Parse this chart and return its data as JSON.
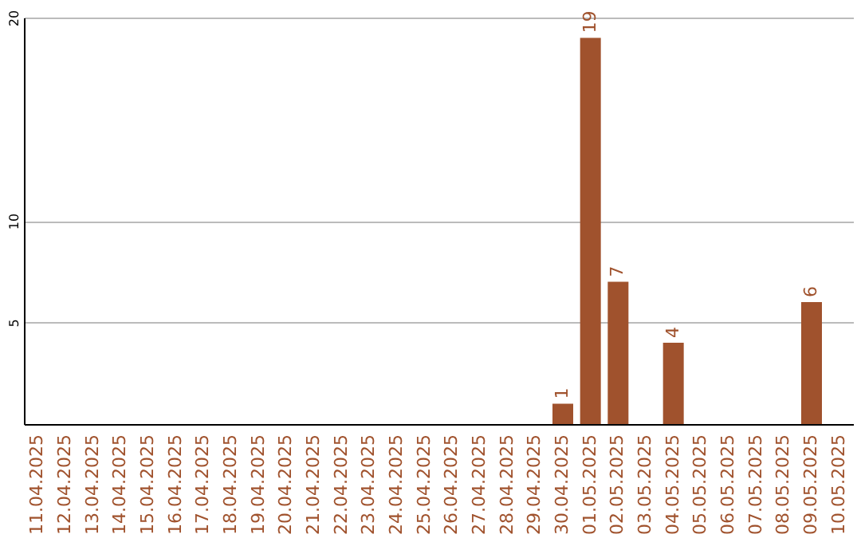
{
  "chart_data": {
    "type": "bar",
    "categories": [
      "11.04.2025",
      "12.04.2025",
      "13.04.2025",
      "14.04.2025",
      "15.04.2025",
      "16.04.2025",
      "17.04.2025",
      "18.04.2025",
      "19.04.2025",
      "20.04.2025",
      "21.04.2025",
      "22.04.2025",
      "23.04.2025",
      "24.04.2025",
      "25.04.2025",
      "26.04.2025",
      "27.04.2025",
      "28.04.2025",
      "29.04.2025",
      "30.04.2025",
      "01.05.2025",
      "02.05.2025",
      "03.05.2025",
      "04.05.2025",
      "05.05.2025",
      "06.05.2025",
      "07.05.2025",
      "08.05.2025",
      "09.05.2025",
      "10.05.2025"
    ],
    "values": [
      0,
      0,
      0,
      0,
      0,
      0,
      0,
      0,
      0,
      0,
      0,
      0,
      0,
      0,
      0,
      0,
      0,
      0,
      0,
      1,
      19,
      7,
      0,
      4,
      0,
      0,
      0,
      0,
      6,
      0
    ],
    "value_labels": [
      null,
      null,
      null,
      null,
      null,
      null,
      null,
      null,
      null,
      null,
      null,
      null,
      null,
      null,
      null,
      null,
      null,
      null,
      null,
      "1",
      "19",
      "7",
      null,
      "4",
      null,
      null,
      null,
      null,
      "6",
      null
    ],
    "color": "#a0522d",
    "ylim": [
      0,
      20
    ],
    "yticks": [
      5,
      10,
      20
    ],
    "grid": "y"
  }
}
